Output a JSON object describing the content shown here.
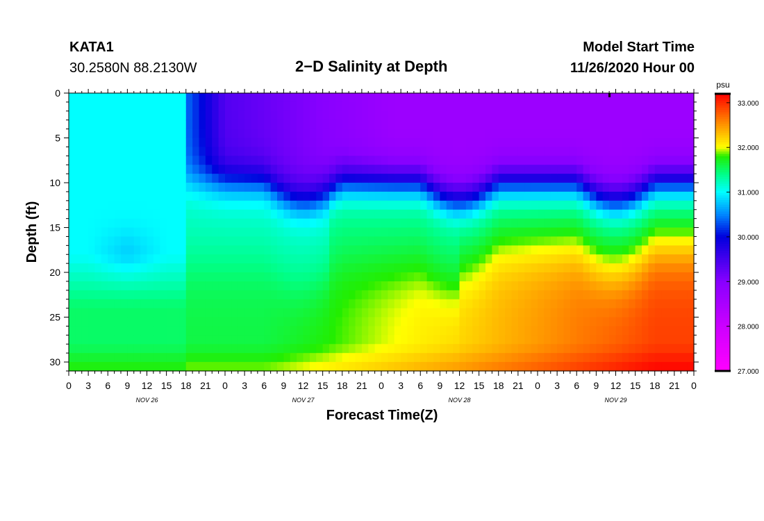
{
  "header": {
    "station_id": "KATA1",
    "coords": "30.2580N 88.2130W",
    "title": "2−D Salinity at Depth",
    "model_label": "Model Start Time",
    "model_time": "11/26/2020 Hour 00"
  },
  "chart_data": {
    "type": "heatmap",
    "title": "2−D Salinity at Depth",
    "xlabel": "Forecast Time(Z)",
    "ylabel": "Depth (ft)",
    "x_range_hours": [
      0,
      96
    ],
    "y_range": [
      0,
      31
    ],
    "y_inverted": true,
    "x_tick_labels": [
      "0",
      "3",
      "6",
      "9",
      "12",
      "15",
      "18",
      "21",
      "0",
      "3",
      "6",
      "9",
      "12",
      "15",
      "18",
      "21",
      "0",
      "3",
      "6",
      "9",
      "12",
      "15",
      "18",
      "21",
      "0",
      "3",
      "6",
      "9",
      "12",
      "15",
      "18",
      "21",
      "0"
    ],
    "y_ticks": [
      0,
      5,
      10,
      15,
      20,
      25,
      30
    ],
    "date_labels": [
      {
        "label": "NOV 26",
        "hour": 12
      },
      {
        "label": "NOV 27",
        "hour": 36
      },
      {
        "label": "NOV 28",
        "hour": 60
      },
      {
        "label": "NOV 29",
        "hour": 84
      }
    ],
    "colorbar": {
      "unit": "psu",
      "range": [
        27.0,
        33.2
      ],
      "tick_labels": [
        "33.000",
        "32.000",
        "31.000",
        "30.000",
        "29.000",
        "28.000",
        "27.000"
      ],
      "tick_values": [
        33,
        32,
        31,
        30,
        29,
        28,
        27
      ],
      "colors": [
        {
          "v": 27.0,
          "c": "#ff00ff"
        },
        {
          "v": 28.0,
          "c": "#cc00ff"
        },
        {
          "v": 29.0,
          "c": "#8800ff"
        },
        {
          "v": 30.0,
          "c": "#0000dd"
        },
        {
          "v": 30.5,
          "c": "#0088ff"
        },
        {
          "v": 31.0,
          "c": "#00ffff"
        },
        {
          "v": 31.4,
          "c": "#00ff88"
        },
        {
          "v": 31.8,
          "c": "#22ee00"
        },
        {
          "v": 32.0,
          "c": "#ffff00"
        },
        {
          "v": 32.4,
          "c": "#ffaa00"
        },
        {
          "v": 32.8,
          "c": "#ff5500"
        },
        {
          "v": 33.2,
          "c": "#ff0000"
        }
      ]
    }
  }
}
